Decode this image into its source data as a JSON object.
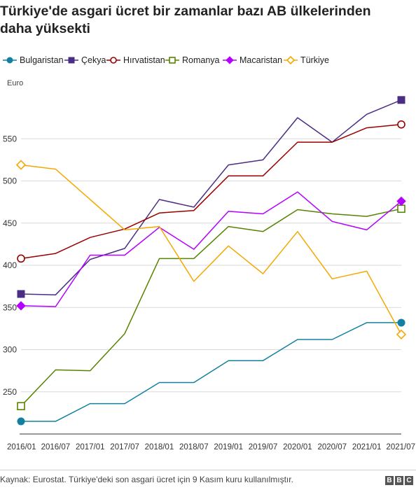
{
  "title": "Türkiye'de asgari ücret bir zamanlar bazı AB ülkelerinden daha yüksekti",
  "source": "Kaynak: Eurostat. Türkiye'deki son asgari ücret için 9 Kasım kuru kullanılmıştır.",
  "logo": [
    "B",
    "B",
    "C"
  ],
  "chart_data": {
    "type": "line",
    "title": "Türkiye'de asgari ücret bir zamanlar bazı AB ülkelerinden daha yüksekti",
    "ylabel": "Euro",
    "xlabel": "",
    "ylim": [
      200,
      600
    ],
    "yticks": [
      250,
      300,
      350,
      400,
      450,
      500,
      550
    ],
    "grid": true,
    "legend_position": "top",
    "categories": [
      "2016/01",
      "2016/07",
      "2017/01",
      "2017/07",
      "2018/01",
      "2018/07",
      "2019/01",
      "2019/07",
      "2020/01",
      "2020/07",
      "2021/01",
      "2021/07"
    ],
    "series": [
      {
        "name": "Bulgaristan",
        "color": "#1380a1",
        "marker": "circle-filled",
        "values": [
          215,
          215,
          236,
          236,
          261,
          261,
          287,
          287,
          312,
          312,
          332,
          332
        ]
      },
      {
        "name": "Çekya",
        "color": "#4b2d84",
        "marker": "square-filled",
        "values": [
          366,
          365,
          407,
          420,
          478,
          469,
          519,
          525,
          575,
          546,
          579,
          596
        ]
      },
      {
        "name": "Hırvatistan",
        "color": "#990000",
        "marker": "circle-open",
        "values": [
          408,
          414,
          433,
          443,
          462,
          465,
          506,
          506,
          546,
          546,
          563,
          567
        ]
      },
      {
        "name": "Romanya",
        "color": "#588300",
        "marker": "square-open",
        "values": [
          233,
          276,
          275,
          319,
          408,
          408,
          446,
          440,
          466,
          461,
          458,
          467
        ]
      },
      {
        "name": "Macaristan",
        "color": "#b300ff",
        "marker": "diamond-filled",
        "values": [
          352,
          351,
          412,
          412,
          445,
          419,
          464,
          461,
          487,
          452,
          442,
          476
        ]
      },
      {
        "name": "Türkiye",
        "color": "#f5a800",
        "marker": "diamond-open",
        "values": [
          519,
          514,
          478,
          442,
          446,
          381,
          423,
          390,
          440,
          384,
          393,
          318
        ]
      }
    ]
  }
}
